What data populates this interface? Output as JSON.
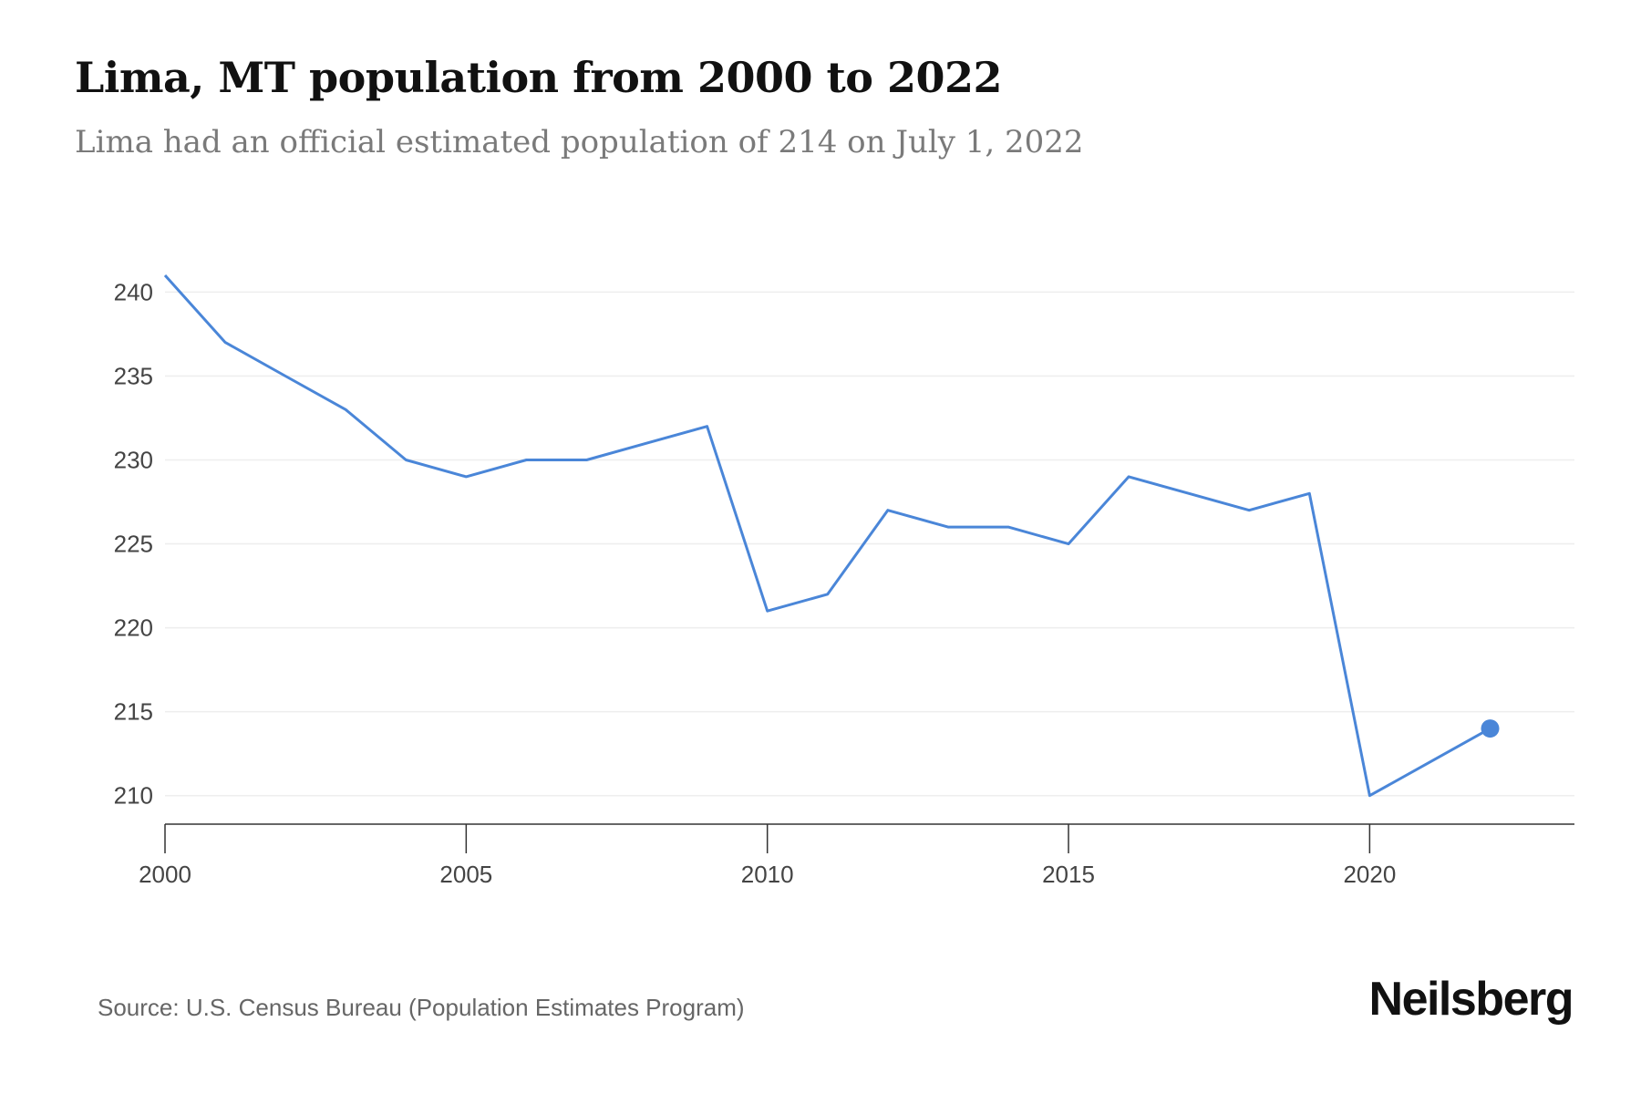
{
  "header": {
    "title": "Lima, MT population from 2000 to 2022",
    "subtitle": "Lima had an official estimated population of 214 on July 1, 2022"
  },
  "footer": {
    "source": "Source: U.S. Census Bureau (Population Estimates Program)",
    "brand": "Neilsberg"
  },
  "colors": {
    "line": "#4a86d8",
    "grid": "#eeeeee",
    "axis": "#333333"
  },
  "chart_data": {
    "type": "line",
    "x": [
      2000,
      2001,
      2002,
      2003,
      2004,
      2005,
      2006,
      2007,
      2008,
      2009,
      2010,
      2011,
      2012,
      2013,
      2014,
      2015,
      2016,
      2017,
      2018,
      2019,
      2020,
      2021,
      2022
    ],
    "series": [
      {
        "values": [
          241,
          237,
          235,
          233,
          230,
          229,
          230,
          230,
          231,
          232,
          221,
          222,
          227,
          226,
          226,
          225,
          229,
          228,
          227,
          228,
          210,
          212,
          214
        ]
      }
    ],
    "xlim": [
      2000,
      2023.4
    ],
    "ylim": [
      208.3,
      241
    ],
    "xticks": [
      2000,
      2005,
      2010,
      2015,
      2020
    ],
    "yticks": [
      210,
      215,
      220,
      225,
      230,
      235,
      240
    ],
    "grid": "horizontal",
    "highlight_last_point": true
  }
}
